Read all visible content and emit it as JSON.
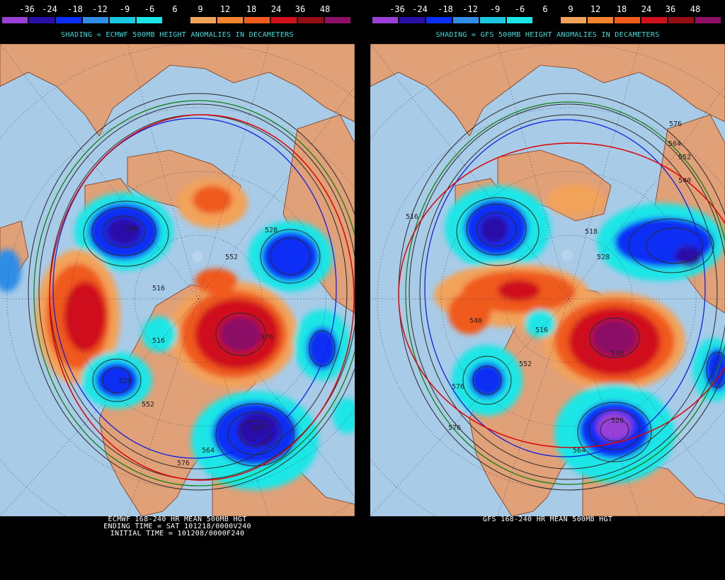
{
  "colorbar": {
    "labels": [
      "-36",
      "-24",
      "-18",
      "-12",
      "-9",
      "-6",
      "6",
      "9",
      "12",
      "18",
      "24",
      "36",
      "48"
    ],
    "colors": [
      "#9a3fd6",
      "#2a0fa8",
      "#0a2ef5",
      "#2f8de6",
      "#17c8e0",
      "#1ae6e6",
      "#000000",
      "#f2a35a",
      "#f4832f",
      "#f05a1c",
      "#d0101a",
      "#950d14",
      "#8b1066"
    ]
  },
  "left_panel": {
    "shading_label": "SHADING = ECMWF 500MB HEIGHT ANOMALIES IN DECAMETERS",
    "footer_line1": "ECMWF 168-240 HR MEAN 500MB HGT",
    "footer_line2": "ENDING TIME = SAT 101218/0000V240",
    "footer_line3": "INITIAL TIME = 101208/0000F240",
    "contour_labels": [
      "528",
      "516",
      "552",
      "528",
      "576",
      "564",
      "528",
      "576",
      "552",
      "528",
      "516"
    ]
  },
  "right_panel": {
    "shading_label": "SHADING = GFS 500MB HEIGHT ANOMALIES IN DECAMETERS",
    "footer_line1": "GFS 168-240 HR MEAN 500MB HGT",
    "contour_labels": [
      "576",
      "564",
      "552",
      "540",
      "516",
      "528",
      "540",
      "516",
      "518",
      "576",
      "552",
      "528",
      "564",
      "576",
      "516"
    ]
  },
  "map_colors": {
    "ocean": "#a8cbe8",
    "land": "#e0a078",
    "border": "#7a3a1a",
    "contour": "#2a2a2a",
    "contour_576": "#e00000",
    "contour_552": "#108010",
    "contour_528": "#1020e0"
  }
}
